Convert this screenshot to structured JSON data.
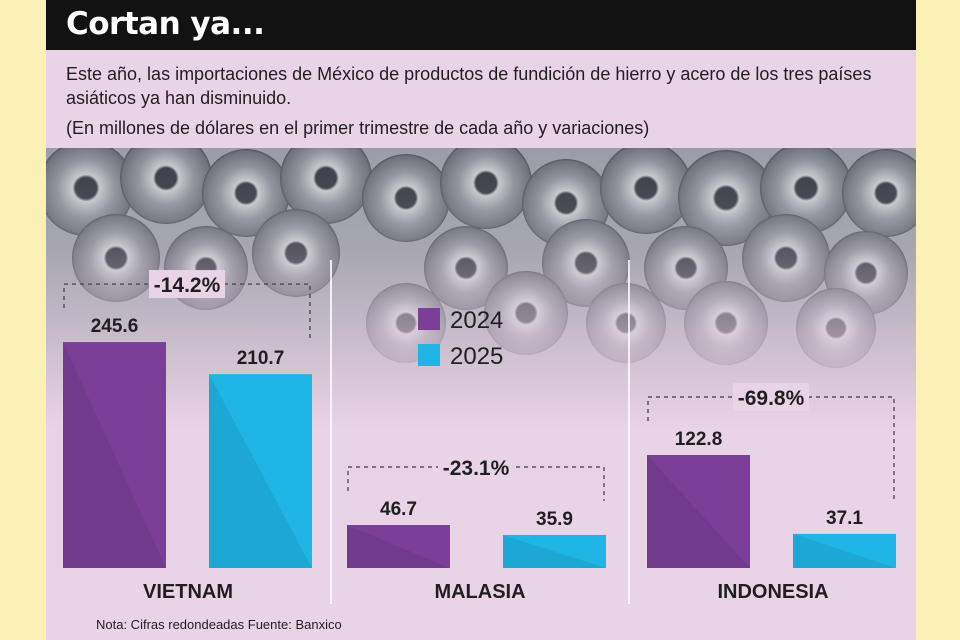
{
  "title": "Cortan ya...",
  "subtitle": "Este año, las importaciones de México de productos de fundición de hierro y acero de los tres países asiáticos ya han disminuido.",
  "units_note": "(En millones de dólares en el primer trimestre de cada año y variaciones)",
  "footnote": "Nota: Cifras redondeadas Fuente: Banxico",
  "colors": {
    "s2024": "#7b3f98",
    "s2025": "#1fb6e6",
    "background": "#e9d3e6",
    "title_bar": "#121212",
    "page": "#fbf0b6"
  },
  "chart_data": {
    "type": "bar",
    "title": "Cortan ya...",
    "categories": [
      "VIETNAM",
      "MALASIA",
      "INDONESIA"
    ],
    "series": [
      {
        "name": "2024",
        "values": [
          245.6,
          46.7,
          122.8
        ]
      },
      {
        "name": "2025",
        "values": [
          210.7,
          35.9,
          37.1
        ]
      }
    ],
    "value_labels": [
      [
        "245.6",
        "46.7",
        "122.8"
      ],
      [
        "210.7",
        "35.9",
        "37.1"
      ]
    ],
    "variations": [
      "-14.2%",
      "-23.1%",
      "-69.8%"
    ],
    "legend_position": "center",
    "ylim": [
      0,
      260
    ],
    "grid": false
  }
}
